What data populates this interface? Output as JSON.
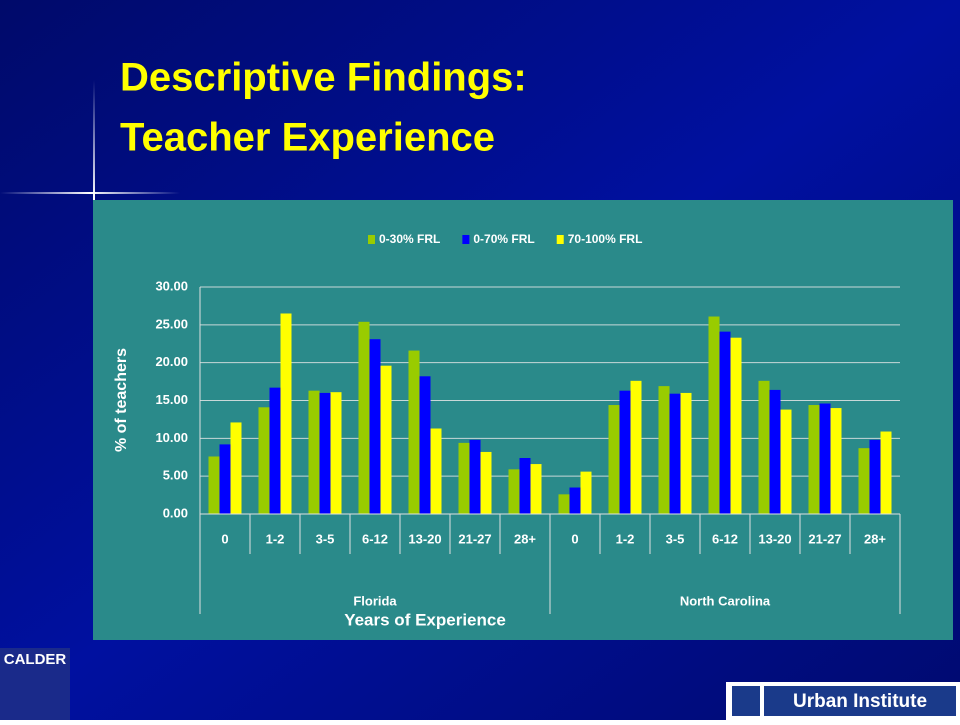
{
  "slide_title": [
    "Descriptive Findings:",
    "Teacher Experience"
  ],
  "logos": [
    "CALDER",
    "Urban Institute"
  ],
  "chart_data": {
    "type": "bar",
    "groups": [
      {
        "name": "Florida",
        "categories": [
          "0",
          "1-2",
          "3-5",
          "6-12",
          "13-20",
          "21-27",
          "28+"
        ]
      },
      {
        "name": "North Carolina",
        "categories": [
          "0",
          "1-2",
          "3-5",
          "6-12",
          "13-20",
          "21-27",
          "28+"
        ]
      }
    ],
    "series": [
      {
        "name": "0-30% FRL",
        "color": "#99cc00",
        "values": [
          7.6,
          14.1,
          16.3,
          25.4,
          21.6,
          9.4,
          5.9,
          2.6,
          14.4,
          16.9,
          26.1,
          17.6,
          14.4,
          8.7
        ]
      },
      {
        "name": "0-70% FRL",
        "color": "#0000ff",
        "values": [
          9.2,
          16.7,
          16.0,
          23.1,
          18.2,
          9.8,
          7.4,
          3.5,
          16.3,
          15.9,
          24.1,
          16.4,
          14.6,
          9.8
        ]
      },
      {
        "name": "70-100% FRL",
        "color": "#ffff00",
        "values": [
          12.1,
          26.5,
          16.1,
          19.6,
          11.3,
          8.2,
          6.6,
          5.6,
          17.6,
          16.0,
          23.3,
          13.8,
          14.0,
          10.9
        ]
      }
    ],
    "x_label": "Years of Experience",
    "y_label": "% of teachers",
    "ylim": [
      0,
      30
    ],
    "yticks": [
      {
        "value": 0,
        "label": "0.00"
      },
      {
        "value": 5,
        "label": "5.00"
      },
      {
        "value": 10,
        "label": "10.00"
      },
      {
        "value": 15,
        "label": "15.00"
      },
      {
        "value": 20,
        "label": "20.00"
      },
      {
        "value": 25,
        "label": "25.00"
      },
      {
        "value": 30,
        "label": "30.00"
      }
    ],
    "grid": true,
    "legend": "top"
  }
}
